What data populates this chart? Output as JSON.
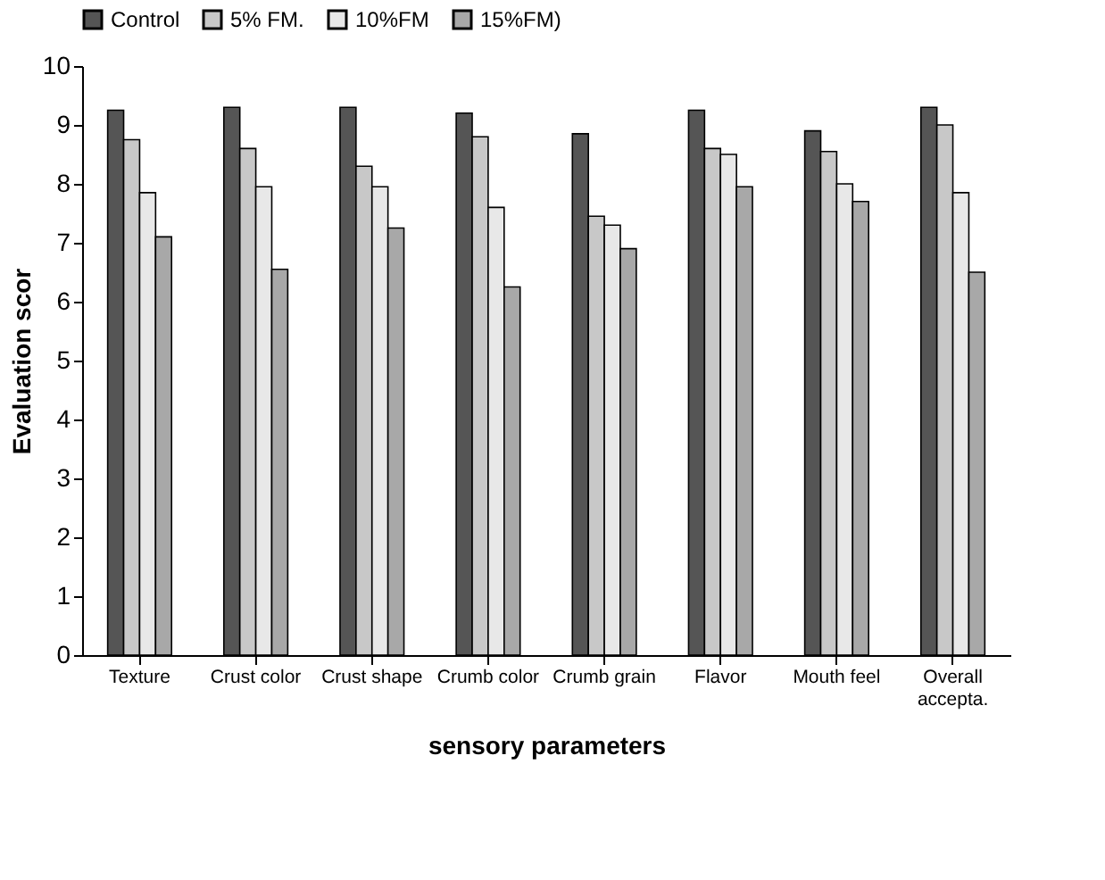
{
  "chart_data": {
    "type": "bar",
    "xlabel": "sensory parameters",
    "ylabel": "Evaluation scor",
    "categories": [
      "Texture",
      "Crust color",
      "Crust shape",
      "Crumb color",
      "Crumb grain",
      "Flavor",
      "Mouth  feel",
      "Overall accepta."
    ],
    "series": [
      {
        "name": "Control",
        "color": "#555555",
        "values": [
          9.25,
          9.3,
          9.3,
          9.2,
          8.85,
          9.25,
          8.9,
          9.3
        ]
      },
      {
        "name": "5% FM.",
        "color": "#c8c8c8",
        "values": [
          8.75,
          8.6,
          8.3,
          8.8,
          7.45,
          8.6,
          8.55,
          9.0
        ]
      },
      {
        "name": "10%FM",
        "color": "#e8e8e8",
        "values": [
          7.85,
          7.95,
          7.95,
          7.6,
          7.3,
          8.5,
          8.0,
          7.85
        ]
      },
      {
        "name": "15%FM)",
        "color": "#a8a8a8",
        "values": [
          7.1,
          6.55,
          7.25,
          6.25,
          6.9,
          7.95,
          7.7,
          6.5
        ]
      }
    ],
    "ylim": [
      0,
      10
    ],
    "yticks": [
      0,
      1,
      2,
      3,
      4,
      5,
      6,
      7,
      8,
      9,
      10
    ],
    "grid": false,
    "legend": "top"
  }
}
